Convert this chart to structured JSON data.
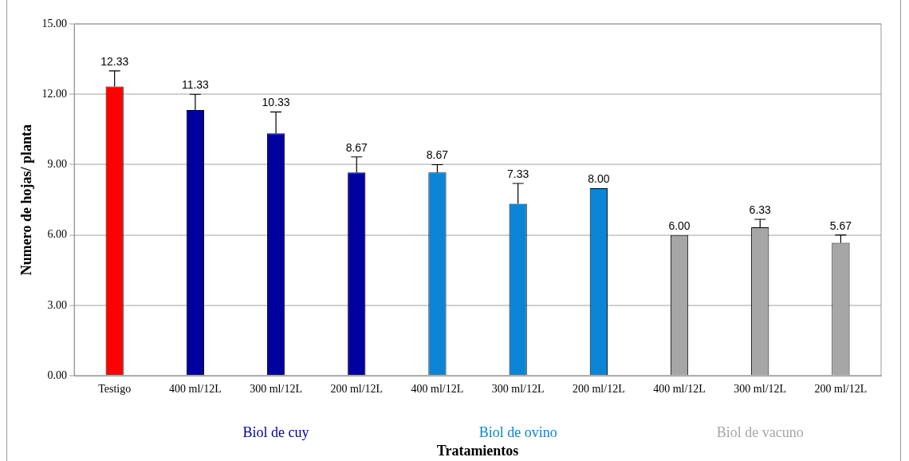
{
  "chart_data": {
    "type": "bar",
    "categories": [
      "Testigo",
      "400 ml/12L",
      "300 ml/12L",
      "200 ml/12L",
      "400 ml/12L",
      "300 ml/12L",
      "200 ml/12L",
      "400 ml/12L",
      "300 ml/12L",
      "200 ml/12L"
    ],
    "values": [
      12.33,
      11.33,
      10.33,
      8.67,
      8.67,
      7.33,
      8.0,
      6.0,
      6.33,
      5.67
    ],
    "colors": [
      "#ff0000",
      "#0000a0",
      "#0000a0",
      "#0000a0",
      "#0b84d6",
      "#0b84d6",
      "#0b84d6",
      "#a6a6a6",
      "#a6a6a6",
      "#a6a6a6"
    ],
    "errors": [
      [
        12.33,
        13.0
      ],
      [
        11.33,
        12.0
      ],
      [
        10.33,
        11.25
      ],
      [
        8.67,
        9.33
      ],
      [
        8.67,
        9.0
      ],
      [
        7.33,
        8.2
      ],
      null,
      null,
      [
        6.33,
        6.67
      ],
      [
        5.67,
        6.0
      ]
    ],
    "value_labels": [
      "12.33",
      "11.33",
      "10.33",
      "8.67",
      "8.67",
      "7.33",
      "8.00",
      "6.00",
      "6.33",
      "5.67"
    ],
    "annotations": [
      "Biol de cuy",
      "Biol de ovino",
      "Biol de vacuno"
    ],
    "xlabel": "Tratamientos",
    "ylabel": "Numero de hojas/ planta",
    "ylim": [
      0,
      15
    ],
    "yticks": [
      {
        "value": 0,
        "label": "0.00"
      },
      {
        "value": 3,
        "label": "3.00"
      },
      {
        "value": 6,
        "label": "6.00"
      },
      {
        "value": 9,
        "label": "9.00"
      },
      {
        "value": 12,
        "label": "12.00"
      },
      {
        "value": 15,
        "label": "15.00"
      }
    ],
    "grid": "y",
    "legend": false
  }
}
